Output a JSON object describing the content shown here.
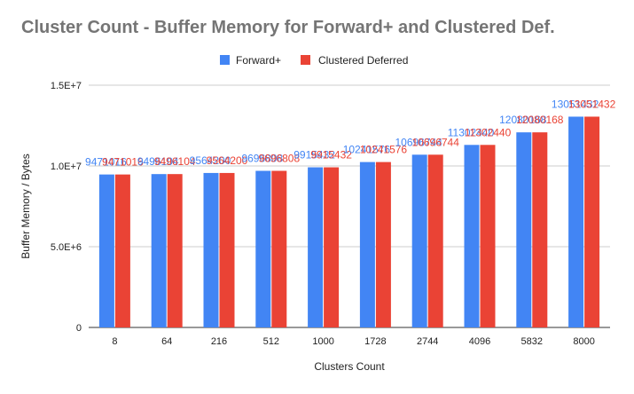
{
  "chart_data": {
    "type": "bar",
    "title": "Cluster Count - Buffer Memory for Forward+ and Clustered Def.",
    "xlabel": "Clusters Count",
    "ylabel": "Buffer Memory / Bytes",
    "categories": [
      "8",
      "64",
      "216",
      "512",
      "1000",
      "1728",
      "2744",
      "4096",
      "5832",
      "8000"
    ],
    "ylim": [
      0,
      15000000
    ],
    "yticks": [
      {
        "value": 0,
        "label": "0"
      },
      {
        "value": 5000000,
        "label": "5.0E+6"
      },
      {
        "value": 10000000,
        "label": "1.0E+7"
      },
      {
        "value": 15000000,
        "label": "1.5E+7"
      }
    ],
    "grid": true,
    "legend_position": "top",
    "series": [
      {
        "name": "Forward+",
        "color": "#4285F4",
        "values": [
          9471016,
          9496104,
          9564200,
          9696808,
          9915432,
          10241576,
          10696744,
          11302440,
          12080168,
          13051432
        ]
      },
      {
        "name": "Clustered Deferred",
        "color": "#EA4335",
        "values": [
          9471016,
          9496104,
          9564200,
          9696808,
          9915432,
          10241576,
          10696744,
          11302440,
          12080168,
          13051432
        ]
      }
    ]
  }
}
